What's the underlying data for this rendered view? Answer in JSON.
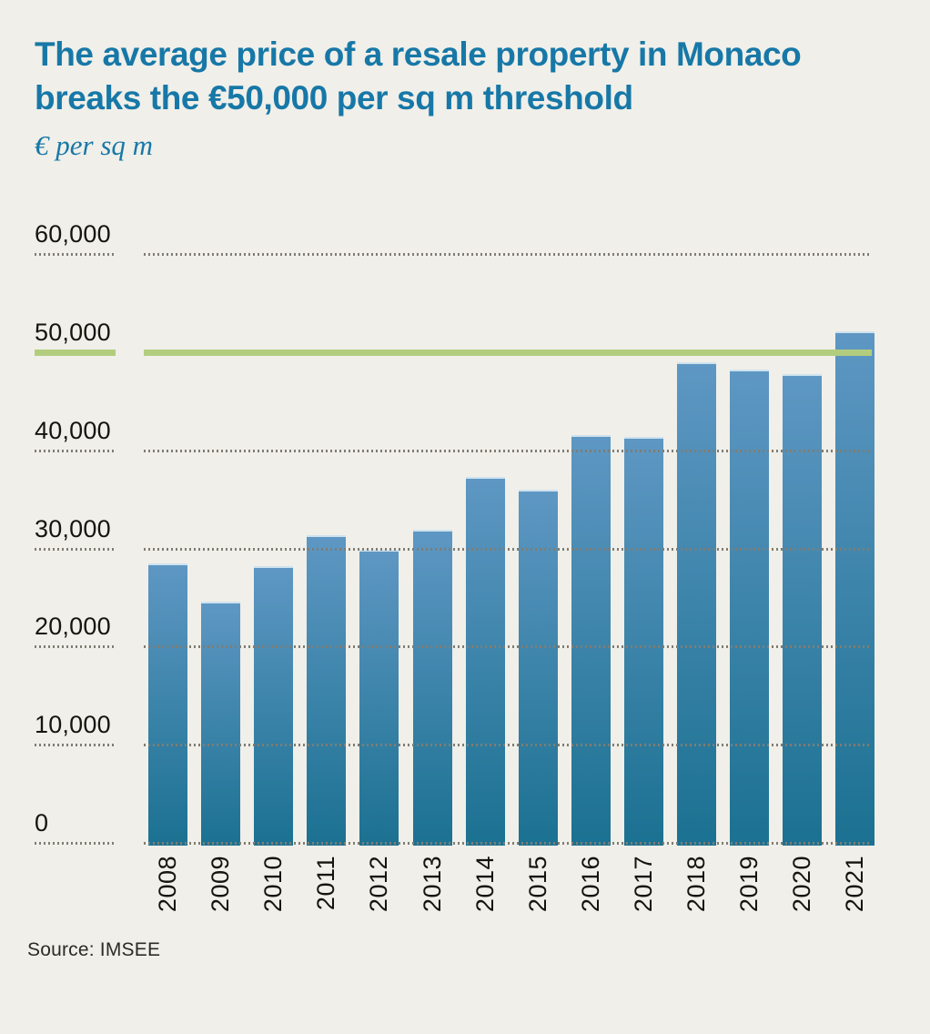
{
  "title": {
    "line1": "The average price of a resale property in Monaco",
    "line2": "breaks the €50,000 per sq m threshold"
  },
  "subtitle": "€ per sq m",
  "source": "Source: IMSEE",
  "colors": {
    "background": "#f0efe9",
    "title_text": "#1778a7",
    "axis_text": "#15140f",
    "gridline": "#7f7d74",
    "bar_top": "#5e97c3",
    "bar_bottom": "#1b7191",
    "threshold_line": "#b3cd7e",
    "source_text": "#2d2b26"
  },
  "chart_data": {
    "type": "bar",
    "title": "The average price of a resale property in Monaco breaks the €50,000 per sq m threshold",
    "ylabel": "€ per sq m",
    "xlabel": "",
    "categories": [
      "2008",
      "2009",
      "2010",
      "2011",
      "2012",
      "2013",
      "2014",
      "2015",
      "2016",
      "2017",
      "2018",
      "2019",
      "2020",
      "2021"
    ],
    "values": [
      28500,
      24600,
      28200,
      31300,
      29900,
      31900,
      37300,
      36000,
      41500,
      41400,
      49000,
      48200,
      47800,
      52100
    ],
    "ylim": [
      0,
      60000
    ],
    "yticks": [
      0,
      10000,
      20000,
      30000,
      40000,
      50000,
      60000
    ],
    "ytick_labels": [
      "0",
      "10,000",
      "20,000",
      "30,000",
      "40,000",
      "50,000",
      "60,000"
    ],
    "grid": "dotted horizontal gridlines, drawn over bars",
    "legend_position": "none",
    "threshold_line": {
      "value": 50000,
      "color": "#b3cd7e",
      "meaning": "€50,000 per sq m threshold"
    },
    "source": "Source: IMSEE"
  }
}
